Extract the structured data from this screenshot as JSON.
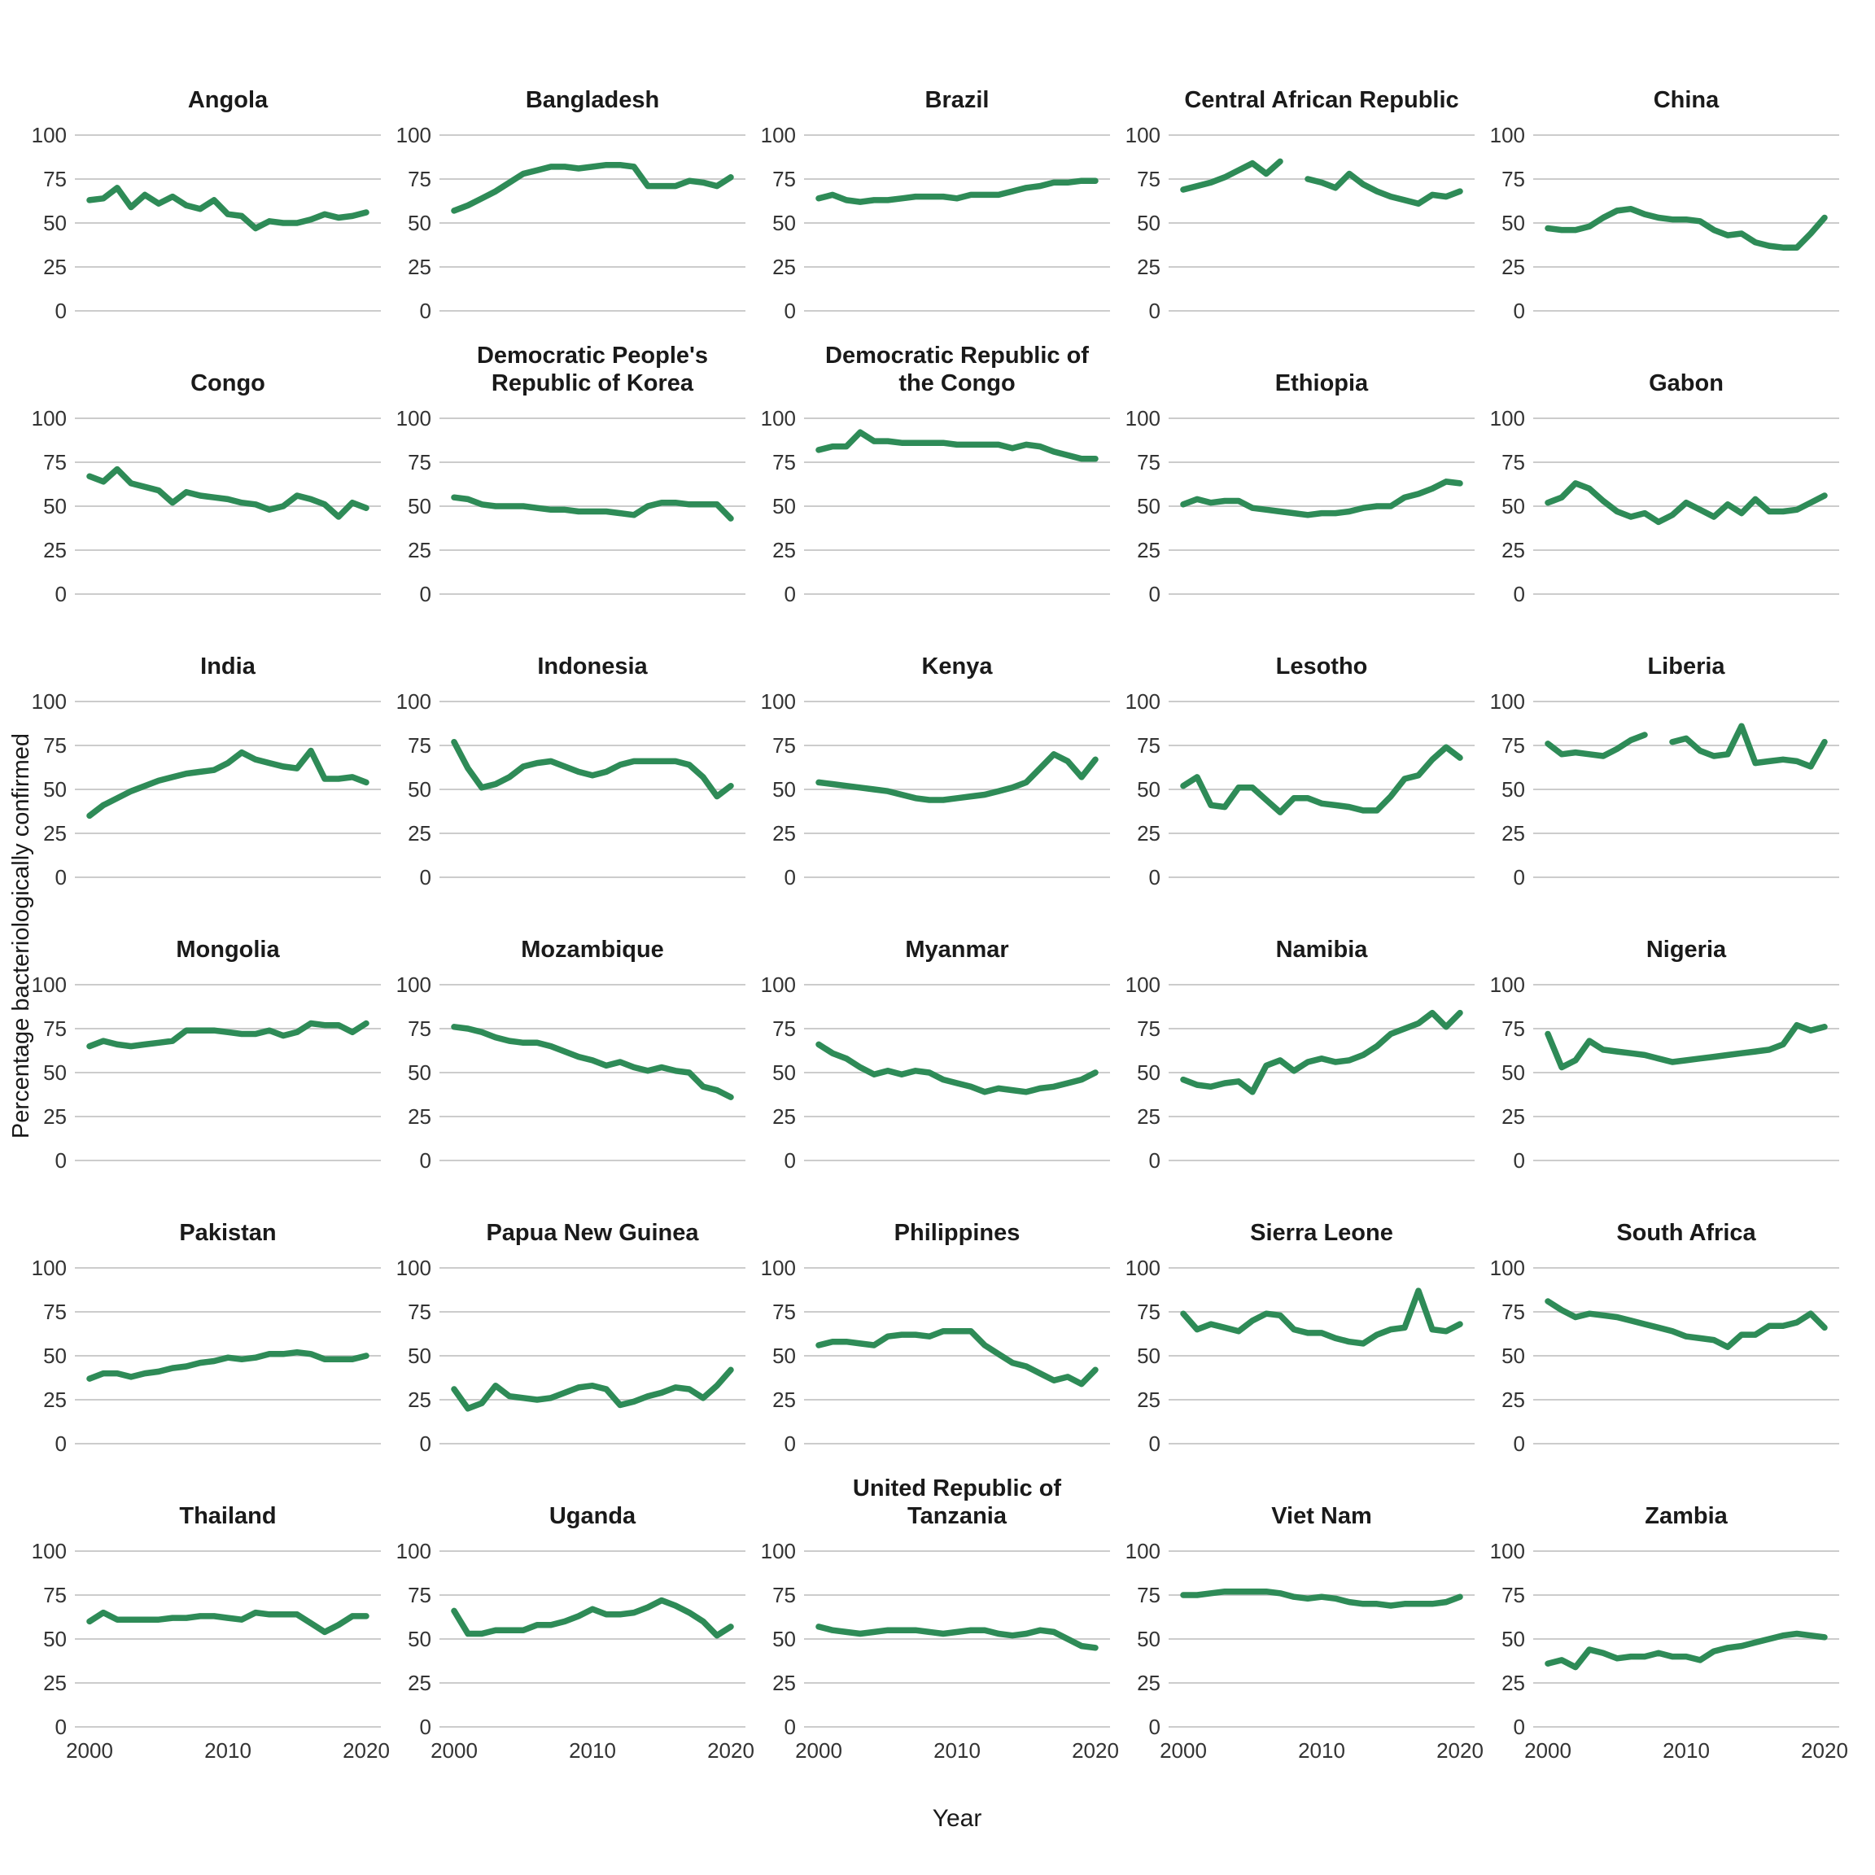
{
  "axes": {
    "y_title": "Percentage bacteriologically confirmed",
    "x_title": "Year"
  },
  "chart_data": {
    "type": "line",
    "layout": "facet-grid-5x6",
    "xlabel": "Year",
    "ylabel": "Percentage bacteriologically confirmed",
    "x_start": 2000,
    "x_end": 2020,
    "xticks": [
      2000,
      2010,
      2020
    ],
    "yticks": [
      0,
      25,
      50,
      75,
      100
    ],
    "ylim": [
      0,
      100
    ],
    "grid": "horizontal-only",
    "legend": "none",
    "line_color": "#2e8b57",
    "gridline_color": "#cccccc",
    "panels": [
      {
        "title": "Angola",
        "values": [
          63,
          64,
          70,
          59,
          66,
          61,
          65,
          60,
          58,
          63,
          55,
          54,
          47,
          51,
          50,
          50,
          52,
          55,
          53,
          54,
          56
        ]
      },
      {
        "title": "Bangladesh",
        "values": [
          57,
          60,
          64,
          68,
          73,
          78,
          80,
          82,
          82,
          81,
          82,
          83,
          83,
          82,
          71,
          71,
          71,
          74,
          73,
          71,
          76
        ]
      },
      {
        "title": "Brazil",
        "values": [
          64,
          66,
          63,
          62,
          63,
          63,
          64,
          65,
          65,
          65,
          64,
          66,
          66,
          66,
          68,
          70,
          71,
          73,
          73,
          74,
          74
        ]
      },
      {
        "title": "Central African Republic",
        "values": [
          69,
          71,
          73,
          76,
          80,
          84,
          78,
          85,
          null,
          75,
          73,
          70,
          78,
          72,
          68,
          65,
          63,
          61,
          66,
          65,
          68
        ]
      },
      {
        "title": "China",
        "values": [
          47,
          46,
          46,
          48,
          53,
          57,
          58,
          55,
          53,
          52,
          52,
          51,
          46,
          43,
          44,
          39,
          37,
          36,
          36,
          44,
          53
        ]
      },
      {
        "title": "Congo",
        "values": [
          67,
          64,
          71,
          63,
          61,
          59,
          52,
          58,
          56,
          55,
          54,
          52,
          51,
          48,
          50,
          56,
          54,
          51,
          44,
          52,
          49
        ]
      },
      {
        "title": "Democratic People's Republic of Korea",
        "values": [
          55,
          54,
          51,
          50,
          50,
          50,
          49,
          48,
          48,
          47,
          47,
          47,
          46,
          45,
          50,
          52,
          52,
          51,
          51,
          51,
          43
        ]
      },
      {
        "title": "Democratic Republic of the Congo",
        "values": [
          82,
          84,
          84,
          92,
          87,
          87,
          86,
          86,
          86,
          86,
          85,
          85,
          85,
          85,
          83,
          85,
          84,
          81,
          79,
          77,
          77
        ]
      },
      {
        "title": "Ethiopia",
        "values": [
          51,
          54,
          52,
          53,
          53,
          49,
          48,
          47,
          46,
          45,
          46,
          46,
          47,
          49,
          50,
          50,
          55,
          57,
          60,
          64,
          63
        ]
      },
      {
        "title": "Gabon",
        "values": [
          52,
          55,
          63,
          60,
          53,
          47,
          44,
          46,
          41,
          45,
          52,
          48,
          44,
          51,
          46,
          54,
          47,
          47,
          48,
          52,
          56
        ]
      },
      {
        "title": "India",
        "values": [
          35,
          41,
          45,
          49,
          52,
          55,
          57,
          59,
          60,
          61,
          65,
          71,
          67,
          65,
          63,
          62,
          72,
          56,
          56,
          57,
          54
        ]
      },
      {
        "title": "Indonesia",
        "values": [
          77,
          62,
          51,
          53,
          57,
          63,
          65,
          66,
          63,
          60,
          58,
          60,
          64,
          66,
          66,
          66,
          66,
          64,
          57,
          46,
          52
        ]
      },
      {
        "title": "Kenya",
        "values": [
          54,
          53,
          52,
          51,
          50,
          49,
          47,
          45,
          44,
          44,
          45,
          46,
          47,
          49,
          51,
          54,
          62,
          70,
          66,
          57,
          67
        ]
      },
      {
        "title": "Lesotho",
        "values": [
          52,
          57,
          41,
          40,
          51,
          51,
          44,
          37,
          45,
          45,
          42,
          41,
          40,
          38,
          38,
          46,
          56,
          58,
          67,
          74,
          68
        ]
      },
      {
        "title": "Liberia",
        "values": [
          76,
          70,
          71,
          70,
          69,
          73,
          78,
          81,
          null,
          77,
          79,
          72,
          69,
          70,
          86,
          65,
          66,
          67,
          66,
          63,
          77
        ]
      },
      {
        "title": "Mongolia",
        "values": [
          65,
          68,
          66,
          65,
          66,
          67,
          68,
          74,
          74,
          74,
          73,
          72,
          72,
          74,
          71,
          73,
          78,
          77,
          77,
          73,
          78
        ]
      },
      {
        "title": "Mozambique",
        "values": [
          76,
          75,
          73,
          70,
          68,
          67,
          67,
          65,
          62,
          59,
          57,
          54,
          56,
          53,
          51,
          53,
          51,
          50,
          42,
          40,
          36
        ]
      },
      {
        "title": "Myanmar",
        "values": [
          66,
          61,
          58,
          53,
          49,
          51,
          49,
          51,
          50,
          46,
          44,
          42,
          39,
          41,
          40,
          39,
          41,
          42,
          44,
          46,
          50
        ]
      },
      {
        "title": "Namibia",
        "values": [
          46,
          43,
          42,
          44,
          45,
          39,
          54,
          57,
          51,
          56,
          58,
          56,
          57,
          60,
          65,
          72,
          75,
          78,
          84,
          76,
          84
        ]
      },
      {
        "title": "Nigeria",
        "values": [
          72,
          53,
          57,
          68,
          63,
          62,
          61,
          60,
          58,
          56,
          57,
          58,
          59,
          60,
          61,
          62,
          63,
          66,
          77,
          74,
          76
        ]
      },
      {
        "title": "Pakistan",
        "values": [
          37,
          40,
          40,
          38,
          40,
          41,
          43,
          44,
          46,
          47,
          49,
          48,
          49,
          51,
          51,
          52,
          51,
          48,
          48,
          48,
          50
        ]
      },
      {
        "title": "Papua New Guinea",
        "values": [
          31,
          20,
          23,
          33,
          27,
          26,
          25,
          26,
          29,
          32,
          33,
          31,
          22,
          24,
          27,
          29,
          32,
          31,
          26,
          33,
          42
        ]
      },
      {
        "title": "Philippines",
        "values": [
          56,
          58,
          58,
          57,
          56,
          61,
          62,
          62,
          61,
          64,
          64,
          64,
          56,
          51,
          46,
          44,
          40,
          36,
          38,
          34,
          42
        ]
      },
      {
        "title": "Sierra Leone",
        "values": [
          74,
          65,
          68,
          66,
          64,
          70,
          74,
          73,
          65,
          63,
          63,
          60,
          58,
          57,
          62,
          65,
          66,
          87,
          65,
          64,
          68
        ]
      },
      {
        "title": "South Africa",
        "values": [
          81,
          76,
          72,
          74,
          73,
          72,
          70,
          68,
          66,
          64,
          61,
          60,
          59,
          55,
          62,
          62,
          67,
          67,
          69,
          74,
          66
        ]
      },
      {
        "title": "Thailand",
        "values": [
          60,
          65,
          61,
          61,
          61,
          61,
          62,
          62,
          63,
          63,
          62,
          61,
          65,
          64,
          64,
          64,
          59,
          54,
          58,
          63,
          63
        ]
      },
      {
        "title": "Uganda",
        "values": [
          66,
          53,
          53,
          55,
          55,
          55,
          58,
          58,
          60,
          63,
          67,
          64,
          64,
          65,
          68,
          72,
          69,
          65,
          60,
          52,
          57
        ]
      },
      {
        "title": "United Republic of Tanzania",
        "values": [
          57,
          55,
          54,
          53,
          54,
          55,
          55,
          55,
          54,
          53,
          54,
          55,
          55,
          53,
          52,
          53,
          55,
          54,
          50,
          46,
          45
        ]
      },
      {
        "title": "Viet Nam",
        "values": [
          75,
          75,
          76,
          77,
          77,
          77,
          77,
          76,
          74,
          73,
          74,
          73,
          71,
          70,
          70,
          69,
          70,
          70,
          70,
          71,
          74
        ]
      },
      {
        "title": "Zambia",
        "values": [
          36,
          38,
          34,
          44,
          42,
          39,
          40,
          40,
          42,
          40,
          40,
          38,
          43,
          45,
          46,
          48,
          50,
          52,
          53,
          52,
          51
        ]
      }
    ]
  }
}
